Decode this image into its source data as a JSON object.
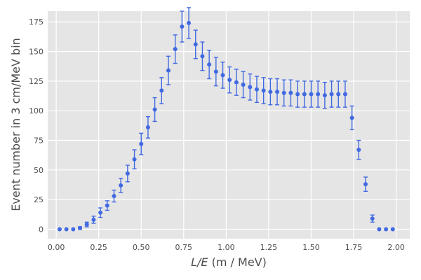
{
  "chart_data": {
    "type": "scatter",
    "xlabel": "L/E (m / MeV)",
    "xlabel_italic": "L/E",
    "xlabel_rest": " (m / MeV)",
    "ylabel": "Event number in 3 cm/MeV bin",
    "xlim": [
      -0.05,
      2.08
    ],
    "ylim": [
      -8,
      184
    ],
    "xticks": [
      0.0,
      0.25,
      0.5,
      0.75,
      1.0,
      1.25,
      1.5,
      1.75,
      2.0
    ],
    "xtick_labels": [
      "0.00",
      "0.25",
      "0.50",
      "0.75",
      "1.00",
      "1.25",
      "1.50",
      "1.75",
      "2.00"
    ],
    "yticks": [
      0,
      25,
      50,
      75,
      100,
      125,
      150,
      175
    ],
    "ytick_labels": [
      "0",
      "25",
      "50",
      "75",
      "100",
      "125",
      "150",
      "175"
    ],
    "grid": true,
    "background": "#e5e5e5",
    "marker_color": "#4169e1",
    "series": [
      {
        "x": [
          0.02,
          0.06,
          0.1,
          0.14,
          0.18,
          0.22,
          0.26,
          0.3,
          0.34,
          0.38,
          0.42,
          0.46,
          0.5,
          0.54,
          0.58,
          0.62,
          0.66,
          0.7,
          0.74,
          0.78,
          0.82,
          0.86,
          0.9,
          0.94,
          0.98,
          1.02,
          1.06,
          1.1,
          1.14,
          1.18,
          1.22,
          1.26,
          1.3,
          1.34,
          1.38,
          1.42,
          1.46,
          1.5,
          1.54,
          1.58,
          1.62,
          1.66,
          1.7,
          1.74,
          1.78,
          1.82,
          1.86,
          1.9,
          1.94,
          1.98
        ],
        "y": [
          0,
          0,
          0,
          1,
          4,
          8,
          14,
          20,
          28,
          37,
          47,
          59,
          72,
          86,
          101,
          117,
          134,
          152,
          171,
          174,
          156,
          146,
          139,
          133,
          130,
          126,
          124,
          122,
          120,
          118,
          117,
          116,
          116,
          115,
          115,
          114,
          114,
          114,
          114,
          113,
          114,
          114,
          114,
          94,
          67,
          38,
          9,
          0,
          0,
          0
        ],
        "err": [
          0,
          0,
          0,
          1,
          2,
          3,
          4,
          4,
          5,
          6,
          7,
          8,
          9,
          9,
          10,
          11,
          12,
          12,
          13,
          13,
          12,
          12,
          12,
          12,
          11,
          11,
          11,
          11,
          11,
          11,
          11,
          11,
          11,
          11,
          11,
          11,
          11,
          11,
          11,
          11,
          11,
          11,
          11,
          10,
          8,
          6,
          3,
          0,
          0,
          0
        ]
      }
    ]
  }
}
